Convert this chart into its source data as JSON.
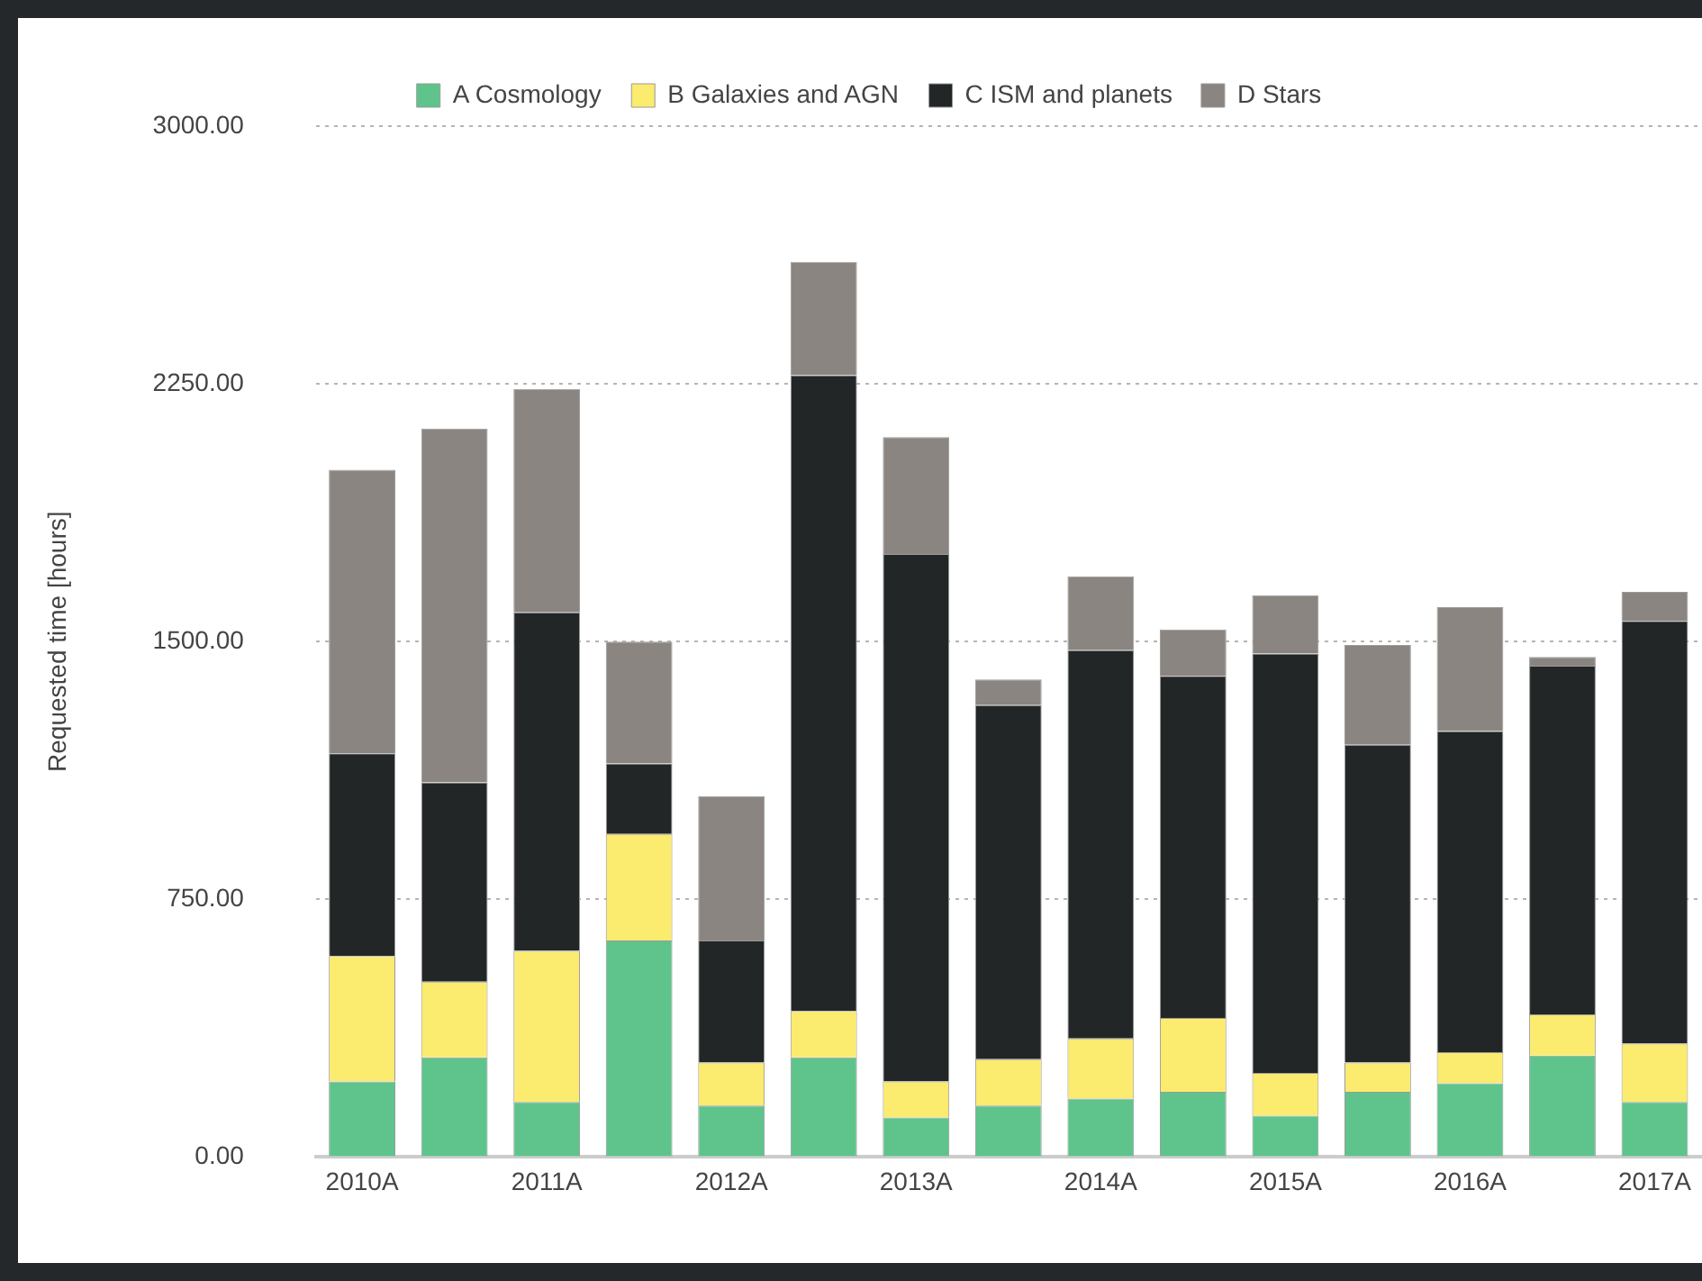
{
  "chart_data": {
    "type": "bar",
    "stacked": true,
    "ylabel": "Requested time [hours]",
    "categories": [
      "2010A",
      null,
      "2011A",
      null,
      "2012A",
      null,
      "2013A",
      null,
      "2014A",
      null,
      "2015A",
      null,
      "2016A",
      null,
      "2017A"
    ],
    "series": [
      {
        "name": "A Cosmology",
        "color": "#5ec48c",
        "values": [
          220,
          290,
          160,
          630,
          150,
          290,
          115,
          150,
          170,
          190,
          120,
          190,
          215,
          295,
          160
        ]
      },
      {
        "name": "B Galaxies and AGN",
        "color": "#fbeb6e",
        "values": [
          365,
          220,
          440,
          310,
          125,
          135,
          105,
          135,
          175,
          215,
          125,
          85,
          90,
          120,
          170
        ]
      },
      {
        "name": "C ISM and planets",
        "color": "#222627",
        "values": [
          590,
          580,
          985,
          205,
          355,
          1850,
          1535,
          1030,
          1130,
          995,
          1220,
          925,
          935,
          1015,
          1230
        ]
      },
      {
        "name": "D Stars",
        "color": "#8a8580",
        "values": [
          825,
          1030,
          650,
          355,
          420,
          330,
          340,
          75,
          215,
          135,
          170,
          290,
          360,
          25,
          85
        ]
      }
    ],
    "ylim": [
      0,
      3000
    ],
    "yticks": [
      {
        "value": 0,
        "label": "0.00"
      },
      {
        "value": 750,
        "label": "750.00"
      },
      {
        "value": 1500,
        "label": "1500.00"
      },
      {
        "value": 2250,
        "label": "2250.00"
      },
      {
        "value": 3000,
        "label": "3000.00"
      }
    ],
    "grid": "y",
    "legend": "top"
  }
}
